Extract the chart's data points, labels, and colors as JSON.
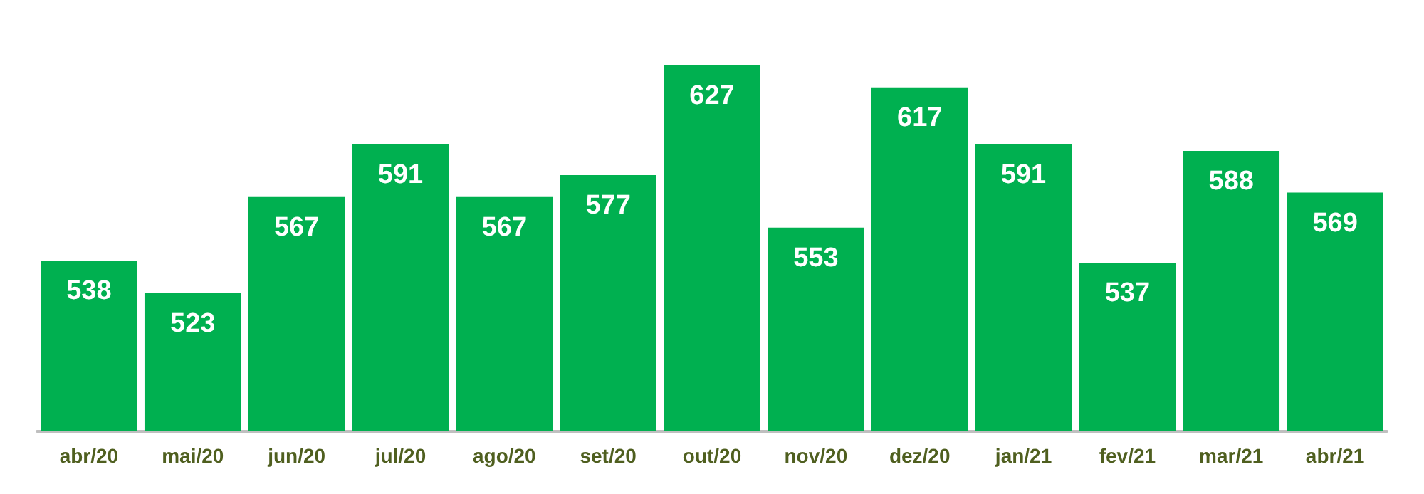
{
  "chart_data": {
    "type": "bar",
    "categories": [
      "abr/20",
      "mai/20",
      "jun/20",
      "jul/20",
      "ago/20",
      "set/20",
      "out/20",
      "nov/20",
      "dez/20",
      "jan/21",
      "fev/21",
      "mar/21",
      "abr/21"
    ],
    "values": [
      538,
      523,
      567,
      591,
      567,
      577,
      627,
      553,
      617,
      591,
      537,
      588,
      569
    ],
    "color": "#00b050",
    "ylim": [
      460,
      627
    ],
    "data_labels": true,
    "grid": false,
    "tick_labels": "x"
  }
}
